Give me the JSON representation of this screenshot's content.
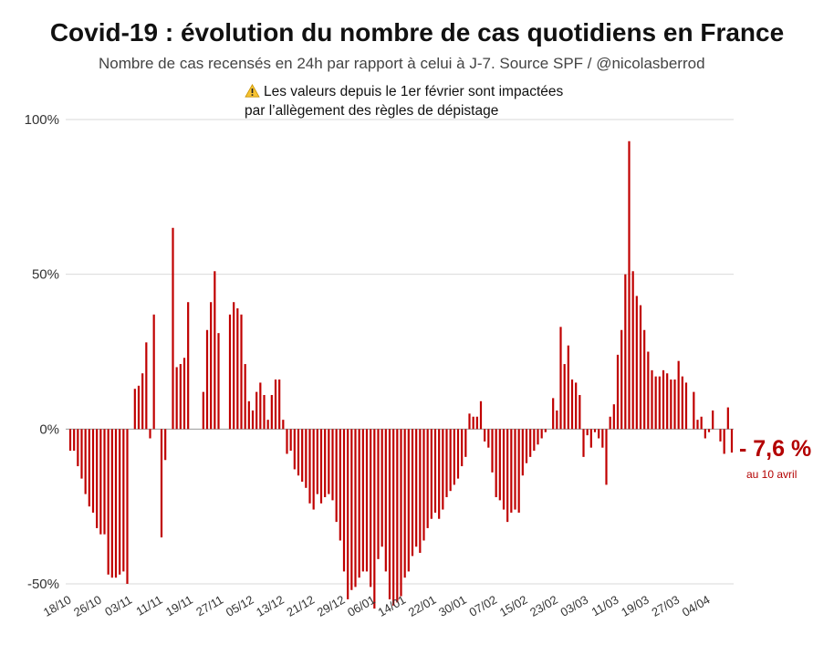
{
  "title": "Covid-19 : évolution du nombre de cas quotidiens en France",
  "subtitle": "Nombre de cas recensés en 24h par rapport à celui à J-7. Source SPF / @nicolasberrod",
  "warning": {
    "icon": "warning-icon",
    "line1": "Les valeurs depuis le 1er février sont impactées",
    "line2": "par l’allègement des règles de dépistage"
  },
  "annotation": {
    "value": "- 7,6 %",
    "date": "au 10 avril"
  },
  "colors": {
    "bar": "#c00000",
    "grid": "#d9d9d9",
    "annotation": "#b30000"
  },
  "chart_data": {
    "type": "bar",
    "title": "Covid-19 : évolution du nombre de cas quotidiens en France",
    "subtitle": "Nombre de cas recensés en 24h par rapport à celui à J-7. Source SPF / @nicolasberrod",
    "x_start": "18/10",
    "x_end": "10/04",
    "unit": "%",
    "ylim": [
      -50,
      100
    ],
    "y_ticks": [
      "100%",
      "50%",
      "0%",
      "-50%"
    ],
    "x_ticks": [
      "18/10",
      "26/10",
      "03/11",
      "11/11",
      "19/11",
      "27/11",
      "05/12",
      "13/12",
      "21/12",
      "29/12",
      "06/01",
      "14/01",
      "22/01",
      "30/01",
      "07/02",
      "15/02",
      "23/02",
      "03/03",
      "11/03",
      "19/03",
      "27/03",
      "04/04"
    ],
    "grid": true,
    "legend": "none",
    "values": [
      -7,
      -7,
      -12,
      -16,
      -21,
      -25,
      -27,
      -32,
      -34,
      -34,
      -47,
      -48,
      -48,
      -47,
      -46,
      -50,
      0,
      13,
      14,
      18,
      28,
      -3,
      37,
      0,
      -35,
      -10,
      0,
      65,
      20,
      21,
      23,
      41,
      0,
      0,
      0,
      12,
      32,
      41,
      51,
      31,
      0,
      0,
      37,
      41,
      39,
      37,
      21,
      9,
      6,
      12,
      15,
      11,
      3,
      11,
      16,
      16,
      3,
      -8,
      -7,
      -13,
      -15,
      -17,
      -19,
      -24,
      -26,
      -21,
      -24,
      -22,
      -21,
      -23,
      -30,
      -36,
      -46,
      -55,
      -52,
      -51,
      -48,
      -46,
      -46,
      -51,
      -58,
      -42,
      -38,
      -46,
      -55,
      -57,
      -56,
      -54,
      -48,
      -46,
      -41,
      -38,
      -40,
      -36,
      -32,
      -29,
      -27,
      -29,
      -26,
      -22,
      -20,
      -18,
      -16,
      -12,
      -9,
      5,
      4,
      4,
      9,
      -4,
      -6,
      -14,
      -22,
      -23,
      -26,
      -30,
      -27,
      -26,
      -27,
      -15,
      -11,
      -9,
      -7,
      -5,
      -3,
      -1,
      0,
      10,
      6,
      33,
      21,
      27,
      16,
      15,
      11,
      -9,
      -2,
      -6,
      -1,
      -3,
      -6,
      -18,
      4,
      8,
      24,
      32,
      50,
      93,
      51,
      43,
      40,
      32,
      25,
      19,
      17,
      17,
      19,
      18,
      16,
      16,
      22,
      17,
      15,
      0,
      12,
      3,
      4,
      -3,
      -1,
      6,
      0,
      -4,
      -8,
      7,
      -7.6
    ]
  }
}
